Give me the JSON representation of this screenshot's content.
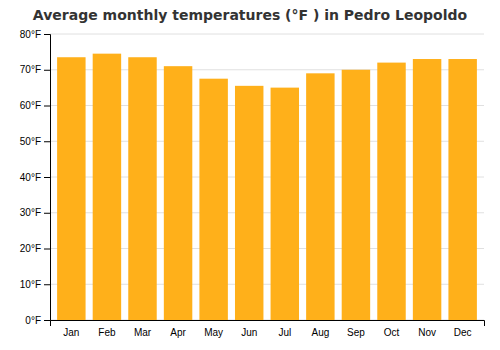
{
  "chart_data": {
    "type": "bar",
    "title": "Average monthly temperatures (°F ) in Pedro Leopoldo",
    "categories": [
      "Jan",
      "Feb",
      "Mar",
      "Apr",
      "May",
      "Jun",
      "Jul",
      "Aug",
      "Sep",
      "Oct",
      "Nov",
      "Dec"
    ],
    "values": [
      73.5,
      74.5,
      73.5,
      71.0,
      67.5,
      65.5,
      65.0,
      69.0,
      70.0,
      72.0,
      73.0,
      73.0
    ],
    "color": "#ffb01a",
    "ylim": [
      0,
      80
    ],
    "yticks": [
      {
        "value": 0,
        "label": "0°F"
      },
      {
        "value": 10,
        "label": "10°F"
      },
      {
        "value": 20,
        "label": "20°F"
      },
      {
        "value": 30,
        "label": "30°F"
      },
      {
        "value": 40,
        "label": "40°F"
      },
      {
        "value": 50,
        "label": "50°F"
      },
      {
        "value": 60,
        "label": "60°F"
      },
      {
        "value": 70,
        "label": "70°F"
      },
      {
        "value": 80,
        "label": "80°F"
      }
    ],
    "grid": true
  }
}
